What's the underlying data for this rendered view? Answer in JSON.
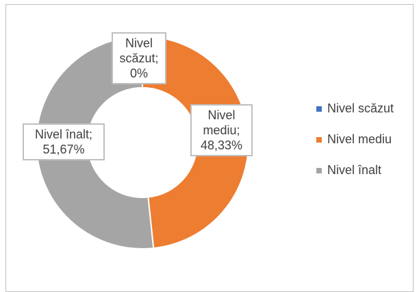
{
  "chart_data": {
    "type": "doughnut",
    "categories": [
      "Nivel scăzut",
      "Nivel mediu",
      "Nivel înalt"
    ],
    "values": [
      0,
      48.33,
      51.67
    ],
    "value_labels": [
      "Nivel\nscăzut;\n0%",
      "Nivel\nmediu;\n48,33%",
      "Nivel înalt;\n51,67%"
    ],
    "colors": [
      "#4472c4",
      "#ed7d31",
      "#a5a5a5"
    ],
    "legend": "right"
  }
}
